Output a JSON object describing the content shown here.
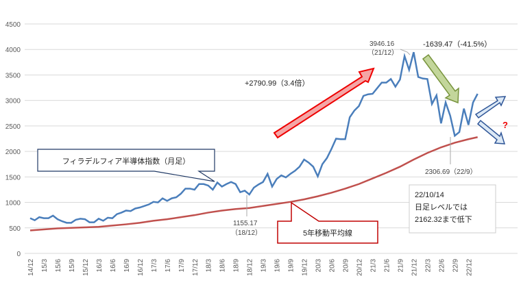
{
  "chart_data": {
    "type": "line",
    "title": "",
    "ylim": [
      0,
      4500
    ],
    "yticks": [
      "0",
      "500",
      "1000",
      "1500",
      "2000",
      "2500",
      "3000",
      "3500",
      "4000",
      "4500"
    ],
    "xticks": [
      "14/12",
      "15/3",
      "15/6",
      "15/9",
      "15/12",
      "16/3",
      "16/6",
      "16/9",
      "16/12",
      "17/3",
      "17/6",
      "17/9",
      "17/12",
      "18/3",
      "18/6",
      "18/9",
      "18/12",
      "19/3",
      "19/6",
      "19/9",
      "19/12",
      "20/3",
      "20/6",
      "20/9",
      "20/12",
      "21/3",
      "21/6",
      "21/9",
      "21/12",
      "22/3",
      "22/6",
      "22/9",
      "22/12"
    ],
    "grid": true,
    "series": [
      {
        "name": "フィラデルフィア半導体指数（月足）",
        "color": "#4a7ebb",
        "start": "14/12",
        "freq": "monthly",
        "values": [
          690,
          650,
          710,
          690,
          690,
          740,
          670,
          630,
          600,
          600,
          660,
          680,
          670,
          610,
          610,
          680,
          640,
          700,
          690,
          770,
          800,
          840,
          830,
          880,
          900,
          930,
          960,
          1010,
          1000,
          1080,
          1030,
          1080,
          1100,
          1170,
          1270,
          1270,
          1250,
          1360,
          1360,
          1330,
          1250,
          1390,
          1310,
          1360,
          1400,
          1360,
          1200,
          1230,
          1155,
          1290,
          1350,
          1400,
          1560,
          1310,
          1460,
          1530,
          1490,
          1560,
          1620,
          1700,
          1840,
          1780,
          1700,
          1510,
          1750,
          1870,
          2050,
          2250,
          2240,
          2240,
          2670,
          2800,
          2890,
          3090,
          3120,
          3130,
          3240,
          3350,
          3350,
          3420,
          3270,
          3410,
          3870,
          3600,
          3946,
          3460,
          3430,
          3420,
          2930,
          3100,
          2550,
          2960,
          2700,
          2307,
          2380,
          2840,
          2520,
          2960,
          3130
        ]
      },
      {
        "name": "5年移動平均線",
        "color": "#c0504d",
        "start": "14/12",
        "freq": "quarterly",
        "values": [
          450,
          470,
          490,
          500,
          510,
          520,
          545,
          570,
          600,
          640,
          670,
          710,
          750,
          800,
          840,
          870,
          890,
          930,
          970,
          1010,
          1060,
          1120,
          1190,
          1270,
          1360,
          1470,
          1580,
          1700,
          1840,
          1970,
          2080,
          2170,
          2240,
          2280
        ]
      }
    ],
    "annotations": {
      "index_callout": "フィラデルフィア半導体指数（月足）",
      "ma_callout": "5年移動平均線",
      "rise": "+2790.99（3.4倍）",
      "fall": "-1639.47（-41.5%）",
      "peak_value": "3946.16",
      "peak_date": "（21/12）",
      "low2018_value": "1155.17",
      "low2018_date": "（18/12）",
      "low2022": "2306.69（22/9）",
      "note_date": "22/10/14",
      "note_line1": "日足レベルでは",
      "note_line2": "2162.32まで低下",
      "question": "?"
    }
  }
}
